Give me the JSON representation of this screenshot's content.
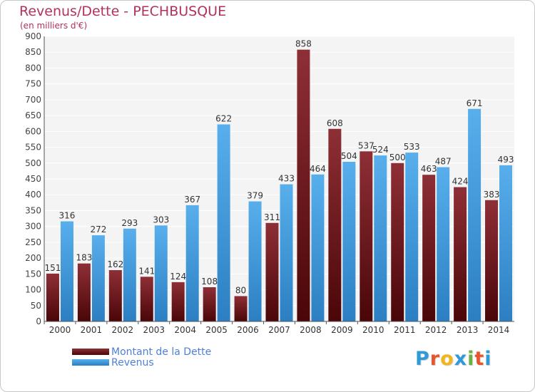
{
  "chart_data": {
    "type": "bar",
    "title": "Revenus/Dette - PECHBUSQUE",
    "subtitle": "(en milliers d'€)",
    "categories": [
      "2000",
      "2001",
      "2002",
      "2003",
      "2004",
      "2005",
      "2006",
      "2007",
      "2008",
      "2009",
      "2010",
      "2011",
      "2012",
      "2013",
      "2014"
    ],
    "series": [
      {
        "name": "Montant de la Dette",
        "color": "#7a1f24",
        "values": [
          151,
          183,
          162,
          141,
          124,
          108,
          80,
          311,
          858,
          608,
          537,
          500,
          463,
          424,
          383
        ]
      },
      {
        "name": "Revenus",
        "color": "#4fa3e3",
        "values": [
          316,
          272,
          293,
          303,
          367,
          622,
          379,
          433,
          464,
          504,
          524,
          533,
          487,
          671,
          493
        ]
      }
    ],
    "ylim": [
      0,
      900
    ],
    "ystep": 50,
    "grid": true,
    "legend": "bottom-left"
  },
  "logo": {
    "letters": [
      "P",
      "r",
      "o",
      "x",
      "i",
      "t",
      "i"
    ],
    "colors": [
      "#2f9ad6",
      "#e8552b",
      "#f2b51c",
      "#2f9ad6",
      "#6ab33f",
      "#e8552b",
      "#2f9ad6"
    ]
  }
}
